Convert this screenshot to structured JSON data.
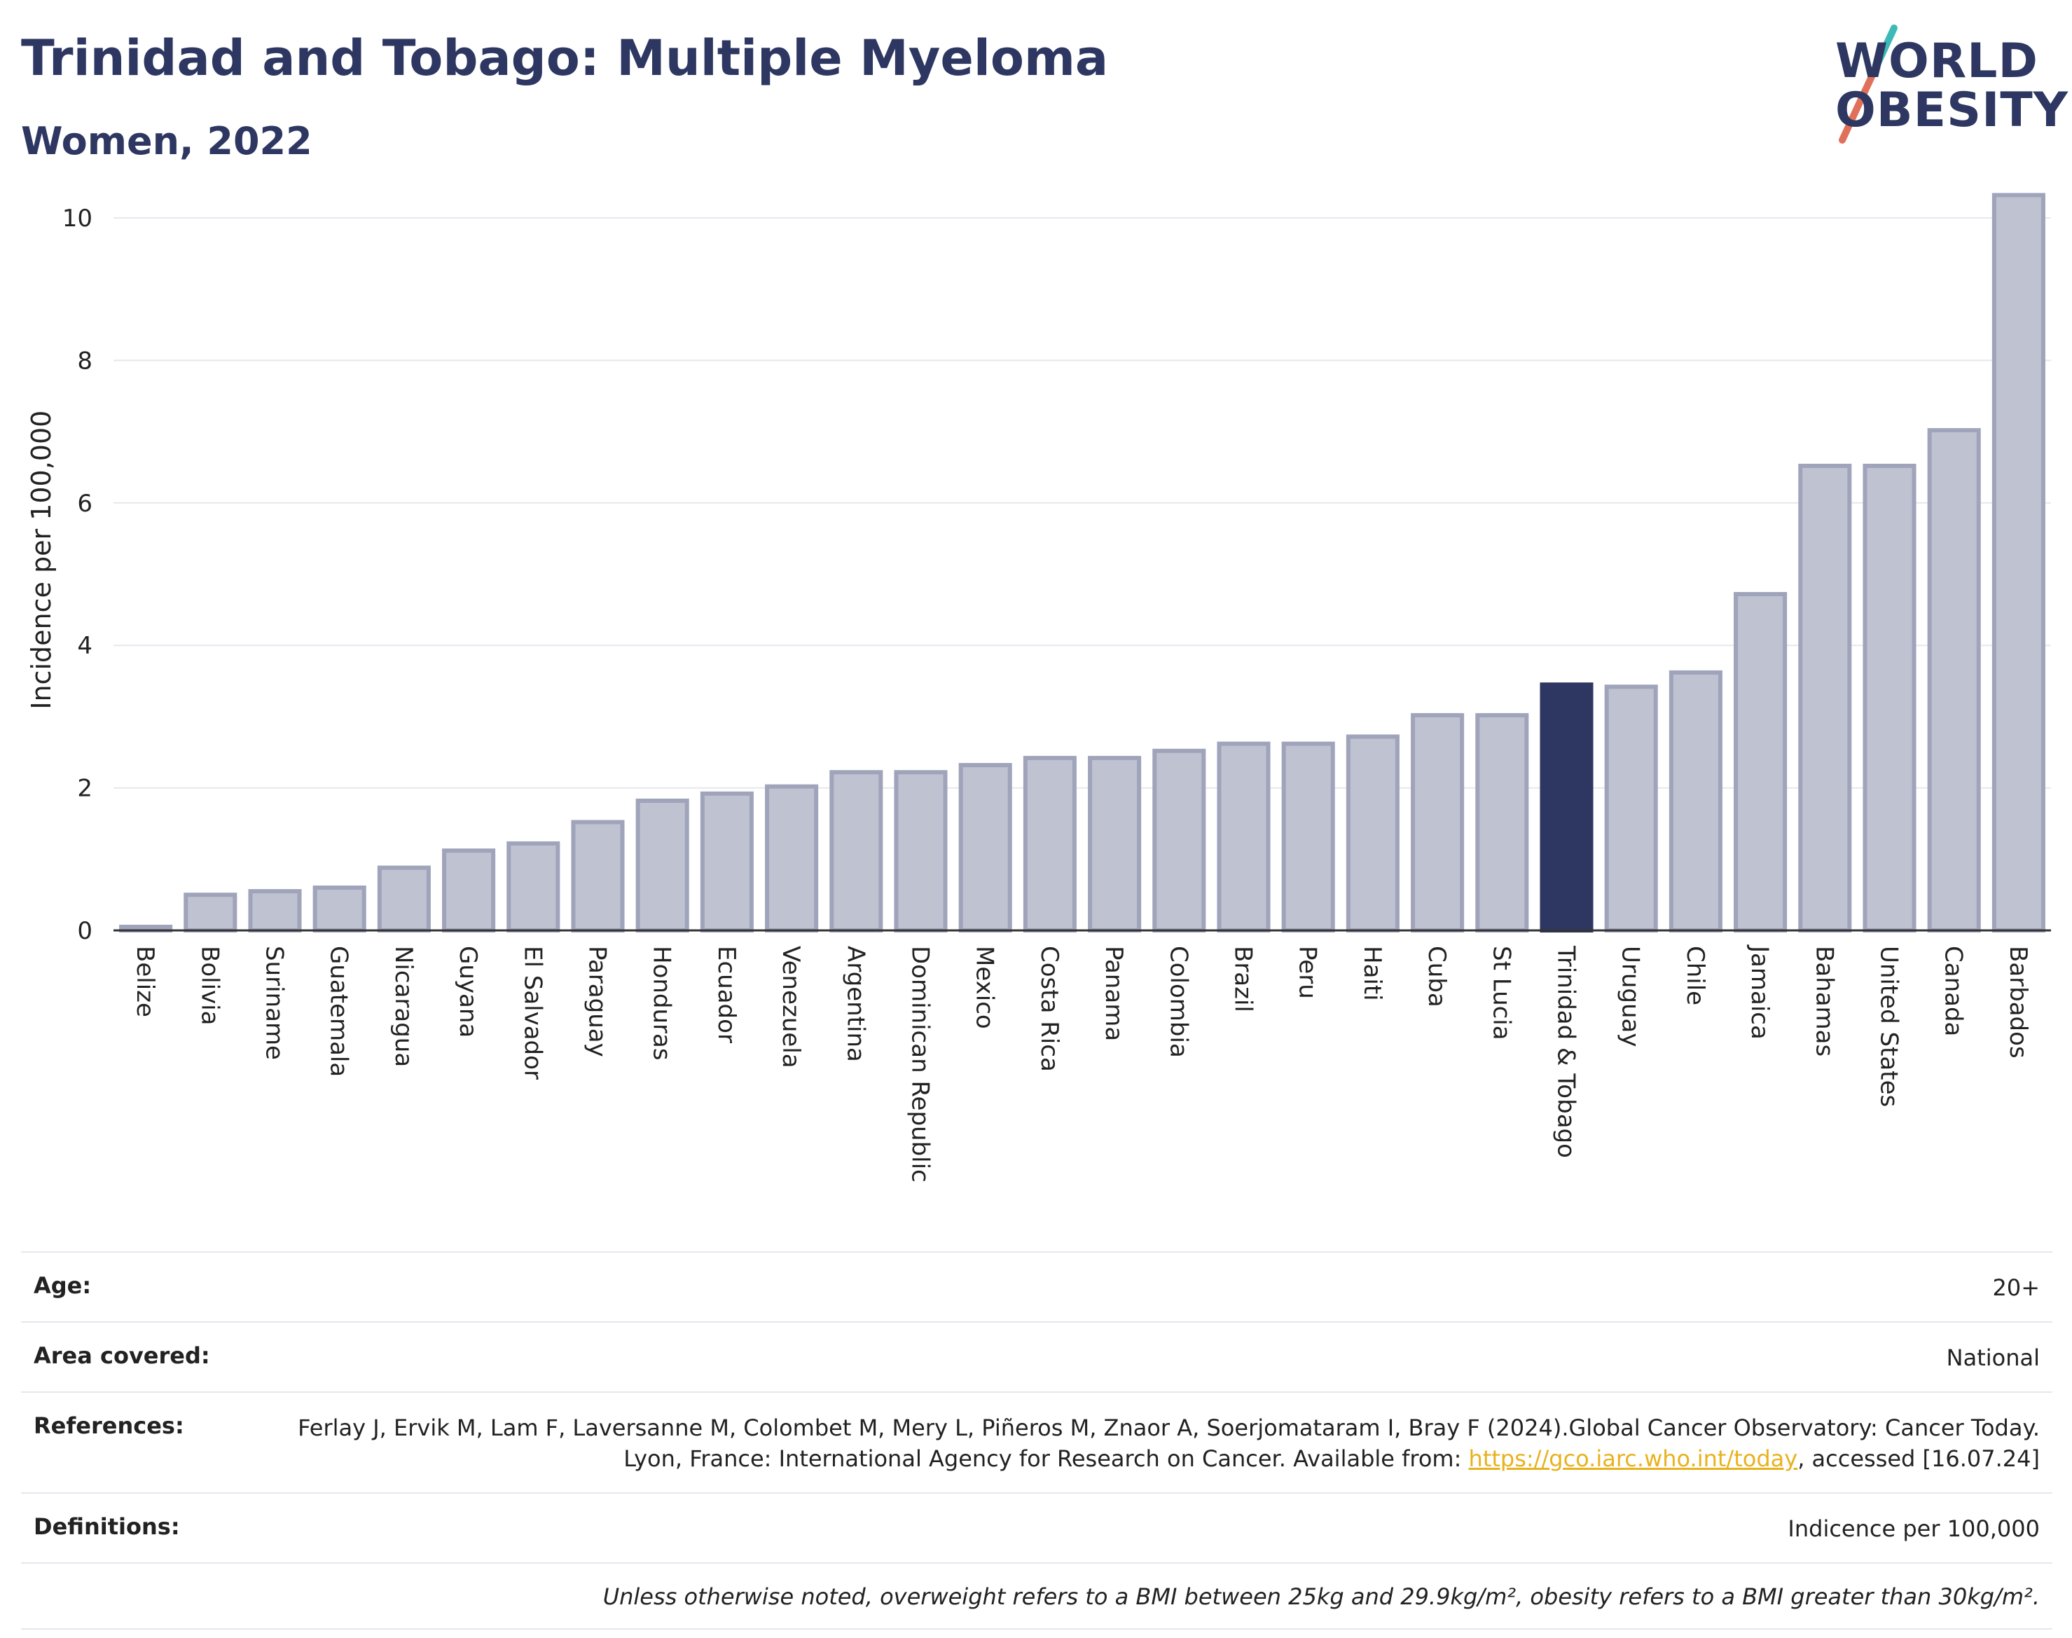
{
  "header": {
    "title": "Trinidad and Tobago: Multiple Myeloma",
    "subtitle": "Women, 2022"
  },
  "logo": {
    "line1": "WORLD",
    "line2": "OBESITY"
  },
  "chart_data": {
    "type": "bar",
    "ylabel": "Incidence per 100,000",
    "xlabel": "",
    "ylim": [
      0,
      10.6
    ],
    "yticks": [
      0,
      2,
      4,
      6,
      8,
      10
    ],
    "grid": true,
    "highlight": "Trinidad & Tobago",
    "colors": {
      "bar": "#bfc2d0",
      "bar_edge": "#9fa4bb",
      "highlight": "#2d3762",
      "grid": "#e6e8ee"
    },
    "categories": [
      "Belize",
      "Bolivia",
      "Suriname",
      "Guatemala",
      "Nicaragua",
      "Guyana",
      "El Salvador",
      "Paraguay",
      "Honduras",
      "Ecuador",
      "Venezuela",
      "Argentina",
      "Dominican Republic",
      "Mexico",
      "Costa Rica",
      "Panama",
      "Colombia",
      "Brazil",
      "Peru",
      "Haiti",
      "Cuba",
      "St Lucia",
      "Trinidad & Tobago",
      "Uruguay",
      "Chile",
      "Jamaica",
      "Bahamas",
      "United States",
      "Canada",
      "Barbados"
    ],
    "values": [
      0.05,
      0.5,
      0.55,
      0.6,
      0.88,
      1.12,
      1.22,
      1.52,
      1.82,
      1.92,
      2.02,
      2.22,
      2.22,
      2.32,
      2.42,
      2.42,
      2.52,
      2.62,
      2.62,
      2.72,
      3.02,
      3.02,
      3.45,
      3.42,
      3.62,
      4.72,
      6.52,
      6.52,
      7.02,
      10.32
    ]
  },
  "info": {
    "age_label": "Age:",
    "age_value": "20+",
    "area_label": "Area covered:",
    "area_value": "National",
    "references_label": "References:",
    "references_text_1": "Ferlay J, Ervik M, Lam F, Laversanne M, Colombet M, Mery L, Piñeros M, Znaor A, Soerjomataram I, Bray F (2024).Global Cancer Observatory: Cancer Today. Lyon, France: International Agency for Research on Cancer. Available from: ",
    "references_link": "https://gco.iarc.who.int/today",
    "references_text_2": ", accessed [16.07.24]",
    "definitions_label": "Definitions:",
    "definitions_value": "Indicence per 100,000",
    "note": "Unless otherwise noted, overweight refers to a BMI between 25kg and 29.9kg/m², obesity refers to a BMI greater than 30kg/m²."
  }
}
